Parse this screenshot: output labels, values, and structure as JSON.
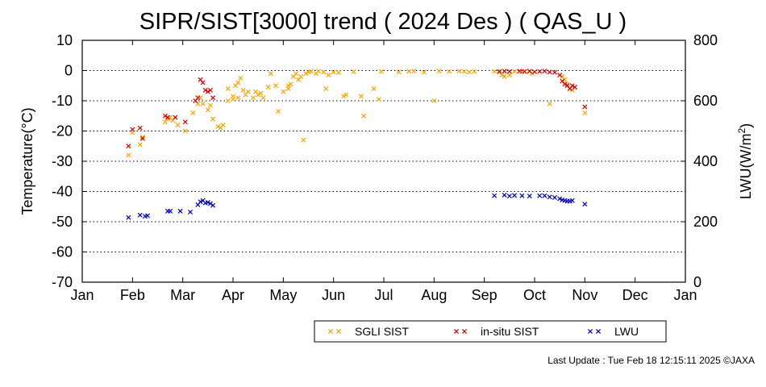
{
  "chart_data": {
    "type": "scatter",
    "title": "SIPR/SIST[3000] trend ( 2024 Des ) ( QAS_U )",
    "ylabel": "Temperature(°C)",
    "y2label_main": "LWU(W/m",
    "y2label_sup": "2",
    "y2label_end": ")",
    "ylim": [
      -70,
      10
    ],
    "y2lim": [
      0,
      800
    ],
    "yticks": [
      10,
      0,
      -10,
      -20,
      -30,
      -40,
      -50,
      -60,
      -70
    ],
    "y2ticks": [
      800,
      600,
      400,
      200,
      0
    ],
    "xlim": [
      0,
      12
    ],
    "x_unit": "month of 2024 (0 = Jan 1)",
    "xticks": [
      "Jan",
      "Feb",
      "Mar",
      "Apr",
      "May",
      "Jun",
      "Jul",
      "Aug",
      "Sep",
      "Oct",
      "Nov",
      "Dec",
      "Jan"
    ],
    "grid": "horizontal dotted at y = 0, -10, -20, -30, -40, -50, -60",
    "legend_position": "bottom-right",
    "series": [
      {
        "name": "SGLI SIST",
        "color": "#ffa500",
        "axis": "left",
        "points": [
          [
            0.92,
            -28
          ],
          [
            1.0,
            -20.5
          ],
          [
            1.15,
            -24.5
          ],
          [
            1.2,
            -22
          ],
          [
            1.65,
            -17
          ],
          [
            1.7,
            -16
          ],
          [
            1.75,
            -15.5
          ],
          [
            1.8,
            -16.5
          ],
          [
            1.9,
            -18
          ],
          [
            2.05,
            -20
          ],
          [
            2.2,
            -14
          ],
          [
            2.3,
            -11
          ],
          [
            2.35,
            -9
          ],
          [
            2.4,
            -11
          ],
          [
            2.5,
            -13
          ],
          [
            2.55,
            -11.5
          ],
          [
            2.6,
            -16
          ],
          [
            2.7,
            -18.5
          ],
          [
            2.75,
            -19
          ],
          [
            2.8,
            -18
          ],
          [
            2.9,
            -10
          ],
          [
            2.9,
            -6
          ],
          [
            3.0,
            -8.5
          ],
          [
            3.0,
            -9.5
          ],
          [
            3.05,
            -5
          ],
          [
            3.1,
            -4
          ],
          [
            3.1,
            -9
          ],
          [
            3.15,
            -2.5
          ],
          [
            3.2,
            -6.5
          ],
          [
            3.25,
            -8
          ],
          [
            3.3,
            -7
          ],
          [
            3.4,
            -9
          ],
          [
            3.45,
            -7
          ],
          [
            3.5,
            -8
          ],
          [
            3.55,
            -7.5
          ],
          [
            3.6,
            -9
          ],
          [
            3.7,
            -5.5
          ],
          [
            3.75,
            -1
          ],
          [
            3.85,
            -5
          ],
          [
            3.9,
            -13.5
          ],
          [
            4.0,
            -7
          ],
          [
            4.1,
            -5
          ],
          [
            4.1,
            -6
          ],
          [
            4.15,
            -4.5
          ],
          [
            4.2,
            -2
          ],
          [
            4.25,
            -1
          ],
          [
            4.3,
            -3
          ],
          [
            4.35,
            -2
          ],
          [
            4.4,
            -23
          ],
          [
            4.45,
            -1
          ],
          [
            4.5,
            -0.5
          ],
          [
            4.55,
            -0.3
          ],
          [
            4.65,
            -1
          ],
          [
            4.7,
            -0.2
          ],
          [
            4.8,
            -0.5
          ],
          [
            4.85,
            -6
          ],
          [
            4.9,
            -1.5
          ],
          [
            5.0,
            -0.5
          ],
          [
            5.1,
            -0.7
          ],
          [
            5.2,
            -8.5
          ],
          [
            5.25,
            -8
          ],
          [
            5.4,
            -0.4
          ],
          [
            5.55,
            -8.5
          ],
          [
            5.6,
            -15
          ],
          [
            5.8,
            -6
          ],
          [
            5.9,
            -9.5
          ],
          [
            5.95,
            -0.3
          ],
          [
            6.3,
            -0.5
          ],
          [
            6.5,
            -0.3
          ],
          [
            6.6,
            -0.2
          ],
          [
            6.8,
            -0.5
          ],
          [
            7.0,
            -10
          ],
          [
            7.1,
            -0.2
          ],
          [
            7.3,
            -0.3
          ],
          [
            7.5,
            -0.2
          ],
          [
            7.6,
            -0.3
          ],
          [
            7.7,
            -0.5
          ],
          [
            7.8,
            -0.3
          ],
          [
            8.2,
            -0.3
          ],
          [
            8.3,
            -0.5
          ],
          [
            8.35,
            -1.5
          ],
          [
            8.4,
            -2
          ],
          [
            8.5,
            -1.5
          ],
          [
            8.6,
            -0.3
          ],
          [
            8.75,
            -0.4
          ],
          [
            8.9,
            -0.3
          ],
          [
            8.95,
            -1
          ],
          [
            9.3,
            -11
          ],
          [
            9.55,
            -2
          ],
          [
            9.6,
            -3
          ],
          [
            9.65,
            -4.5
          ],
          [
            9.7,
            -6
          ],
          [
            9.75,
            -6.5
          ],
          [
            9.8,
            -5.5
          ],
          [
            10.0,
            -14
          ]
        ]
      },
      {
        "name": "in-situ SIST",
        "color": "#dd0000",
        "axis": "left",
        "points": [
          [
            0.92,
            -25
          ],
          [
            1.0,
            -19.5
          ],
          [
            1.15,
            -19
          ],
          [
            1.2,
            -22.5
          ],
          [
            1.65,
            -15
          ],
          [
            1.7,
            -15.5
          ],
          [
            1.85,
            -15.5
          ],
          [
            2.05,
            -17
          ],
          [
            2.25,
            -10
          ],
          [
            2.3,
            -9
          ],
          [
            2.35,
            -3
          ],
          [
            2.4,
            -4
          ],
          [
            2.45,
            -6.5
          ],
          [
            2.5,
            -7
          ],
          [
            2.55,
            -6.5
          ],
          [
            2.6,
            -9
          ],
          [
            8.3,
            -0.3
          ],
          [
            8.4,
            -0.2
          ],
          [
            8.5,
            -0.3
          ],
          [
            8.7,
            -0.2
          ],
          [
            8.8,
            -0.3
          ],
          [
            8.9,
            -0.2
          ],
          [
            9.0,
            -0.4
          ],
          [
            9.1,
            -0.3
          ],
          [
            9.2,
            -0.2
          ],
          [
            9.3,
            -0.5
          ],
          [
            9.4,
            -0.6
          ],
          [
            9.5,
            -1.5
          ],
          [
            9.55,
            -3.5
          ],
          [
            9.6,
            -4.5
          ],
          [
            9.65,
            -5
          ],
          [
            9.7,
            -6
          ],
          [
            9.75,
            -5
          ],
          [
            9.8,
            -5.5
          ],
          [
            10.0,
            -12
          ]
        ]
      },
      {
        "name": "LWU",
        "color": "#0000cc",
        "axis": "right",
        "points": [
          [
            0.92,
            214
          ],
          [
            1.15,
            222
          ],
          [
            1.25,
            218
          ],
          [
            1.3,
            220
          ],
          [
            1.7,
            235
          ],
          [
            1.75,
            235
          ],
          [
            1.95,
            235
          ],
          [
            2.15,
            232
          ],
          [
            2.3,
            256
          ],
          [
            2.35,
            266
          ],
          [
            2.4,
            270
          ],
          [
            2.45,
            262
          ],
          [
            2.5,
            264
          ],
          [
            2.55,
            260
          ],
          [
            2.6,
            254
          ],
          [
            8.2,
            286
          ],
          [
            8.4,
            288
          ],
          [
            8.5,
            285
          ],
          [
            8.6,
            287
          ],
          [
            8.75,
            286
          ],
          [
            8.9,
            285
          ],
          [
            9.1,
            286
          ],
          [
            9.2,
            286
          ],
          [
            9.3,
            282
          ],
          [
            9.4,
            280
          ],
          [
            9.5,
            276
          ],
          [
            9.55,
            272
          ],
          [
            9.6,
            270
          ],
          [
            9.65,
            268
          ],
          [
            9.7,
            268
          ],
          [
            9.75,
            270
          ],
          [
            10.0,
            258
          ]
        ]
      }
    ]
  },
  "footer": {
    "update_text": "Last Update : Tue Feb 18 12:15:11 2025",
    "credit": "©JAXA"
  }
}
